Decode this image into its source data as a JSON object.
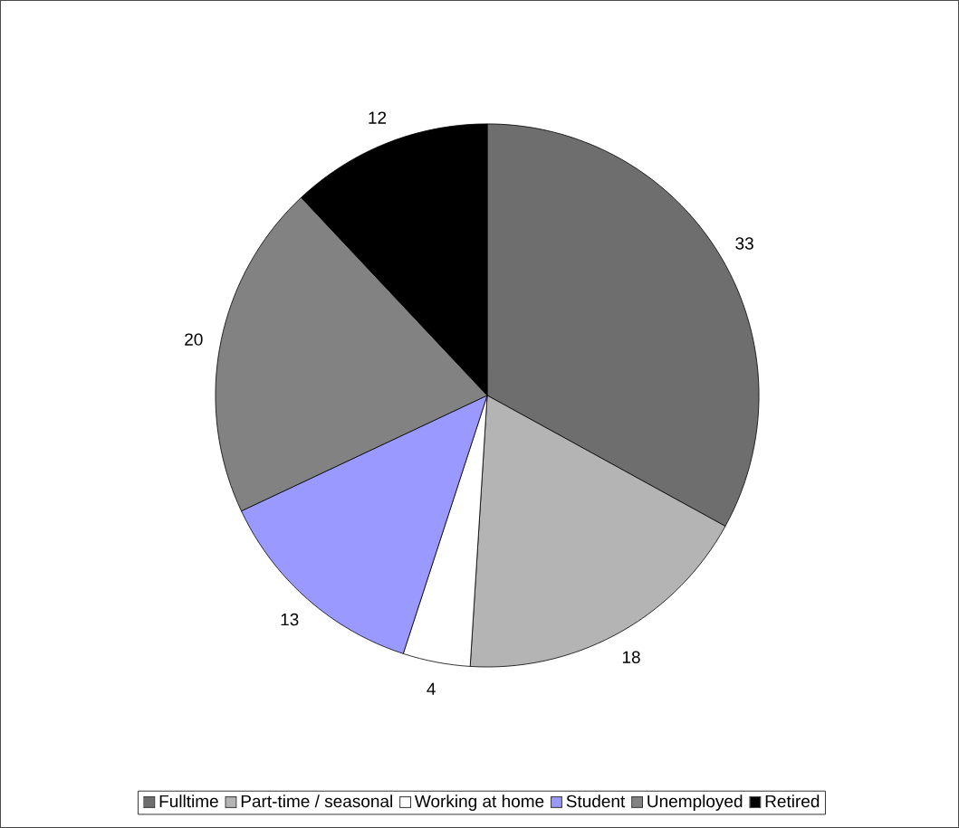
{
  "chart_data": {
    "type": "pie",
    "categories": [
      "Fulltime",
      "Part-time / seasonal",
      "Working at home",
      "Student",
      "Unemployed",
      "Retired"
    ],
    "values": [
      33,
      18,
      4,
      13,
      20,
      12
    ],
    "colors": [
      "#6e6e6e",
      "#b4b4b4",
      "#ffffff",
      "#9999ff",
      "#828282",
      "#000000"
    ],
    "data_labels": true,
    "legend": "bottom"
  }
}
